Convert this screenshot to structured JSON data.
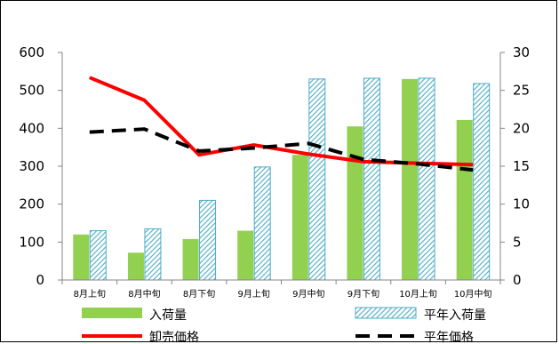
{
  "chart_data": {
    "type": "bar",
    "categories": [
      "8月上旬",
      "8月中旬",
      "8月下旬",
      "9月上旬",
      "9月中旬",
      "9月下旬",
      "10月上旬",
      "10月中旬"
    ],
    "series": [
      {
        "name": "入荷量",
        "kind": "bar",
        "axis": "left",
        "color": "#92d050",
        "values": [
          120,
          72,
          108,
          130,
          330,
          405,
          530,
          422
        ]
      },
      {
        "name": "平年入荷量",
        "kind": "bar",
        "axis": "left",
        "color": "#4bacc6",
        "pattern": "diagonal-hatch",
        "values": [
          130,
          135,
          210,
          298,
          530,
          532,
          532,
          518
        ]
      },
      {
        "name": "卸売価格",
        "kind": "line",
        "axis": "right",
        "color": "#ff0000",
        "values": [
          26.7,
          23.7,
          16.5,
          17.8,
          16.6,
          15.6,
          15.4,
          15.2
        ]
      },
      {
        "name": "平年価格",
        "kind": "line",
        "axis": "right",
        "color": "#000000",
        "dash": "dashed",
        "values": [
          19.5,
          19.9,
          17.0,
          17.4,
          18.0,
          15.9,
          15.3,
          14.5
        ]
      }
    ],
    "y_left": {
      "range": [
        0,
        600
      ],
      "ticks": [
        "0",
        "100",
        "200",
        "300",
        "400",
        "500",
        "600"
      ]
    },
    "y_right": {
      "range": [
        0,
        30
      ],
      "ticks": [
        "0",
        "5",
        "10",
        "15",
        "20",
        "25",
        "30"
      ]
    },
    "legend": "bottom",
    "grid": false
  }
}
